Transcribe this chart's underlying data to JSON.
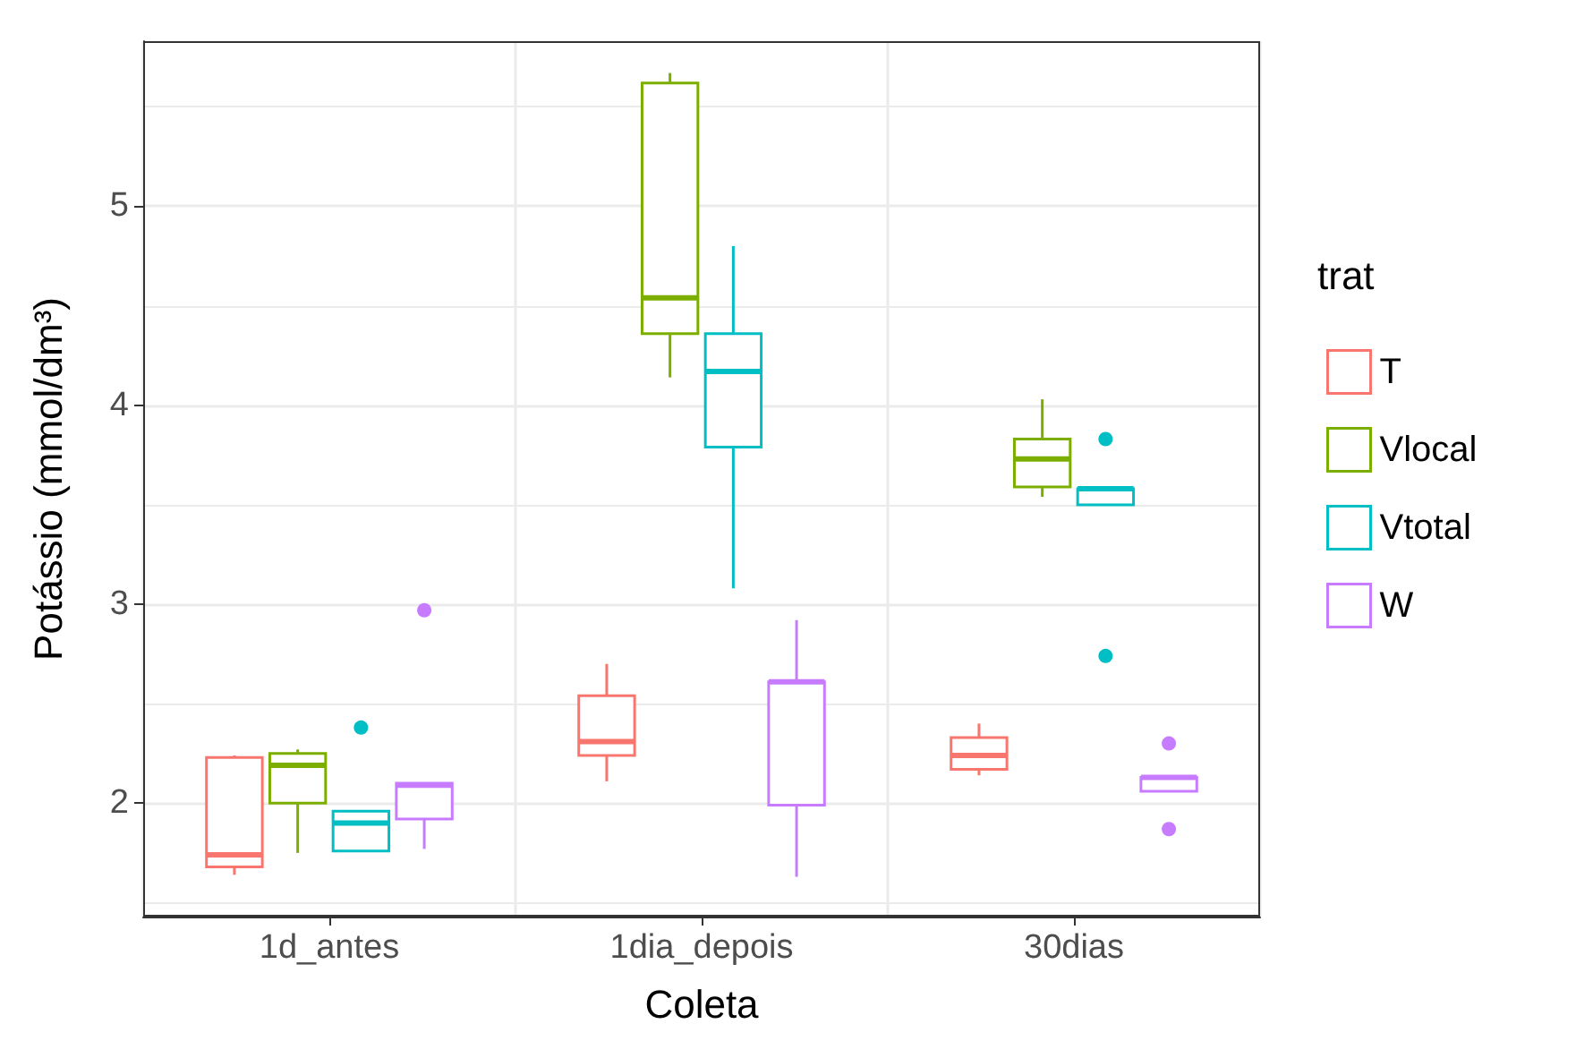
{
  "chart_data": {
    "type": "box",
    "xlabel": "Coleta",
    "ylabel": "Potássio (mmol/dm³)",
    "legend_title": "trat",
    "legend": "right",
    "grid": true,
    "categories": [
      "1d_antes",
      "1dia_depois",
      "30dias"
    ],
    "ylim": [
      1.43,
      5.83
    ],
    "yticks": [
      2,
      3,
      4,
      5
    ],
    "series": [
      {
        "name": "T",
        "color": "#f8766d",
        "boxes": [
          {
            "low": 1.64,
            "q1": 1.68,
            "median": 1.74,
            "q3": 2.23,
            "high": 2.24
          },
          {
            "low": 2.11,
            "q1": 2.24,
            "median": 2.31,
            "q3": 2.54,
            "high": 2.7
          },
          {
            "low": 2.14,
            "q1": 2.17,
            "median": 2.24,
            "q3": 2.33,
            "high": 2.4
          }
        ]
      },
      {
        "name": "Vlocal",
        "color": "#7cae00",
        "boxes": [
          {
            "low": 1.75,
            "q1": 2.0,
            "median": 2.19,
            "q3": 2.25,
            "high": 2.27
          },
          {
            "low": 4.14,
            "q1": 4.36,
            "median": 4.54,
            "q3": 5.62,
            "high": 5.67
          },
          {
            "low": 3.54,
            "q1": 3.59,
            "median": 3.73,
            "q3": 3.83,
            "high": 4.03
          }
        ]
      },
      {
        "name": "Vtotal",
        "color": "#00bfc4",
        "boxes": [
          {
            "low": 1.76,
            "q1": 1.76,
            "median": 1.9,
            "q3": 1.96,
            "high": 1.96,
            "outliers": [
              2.38
            ]
          },
          {
            "low": 3.08,
            "q1": 3.79,
            "median": 4.17,
            "q3": 4.36,
            "high": 4.8
          },
          {
            "low": 3.5,
            "q1": 3.5,
            "median": 3.58,
            "q3": 3.58,
            "high": 3.58,
            "outliers": [
              3.83,
              2.74
            ]
          }
        ]
      },
      {
        "name": "W",
        "color": "#c77cff",
        "boxes": [
          {
            "low": 1.77,
            "q1": 1.92,
            "median": 2.09,
            "q3": 2.1,
            "high": 2.1,
            "outliers": [
              2.97
            ]
          },
          {
            "low": 1.63,
            "q1": 1.99,
            "median": 2.61,
            "q3": 2.61,
            "high": 2.92
          },
          {
            "low": 2.06,
            "q1": 2.06,
            "median": 2.13,
            "q3": 2.13,
            "high": 2.13,
            "outliers": [
              2.3,
              1.87
            ]
          }
        ]
      }
    ]
  }
}
